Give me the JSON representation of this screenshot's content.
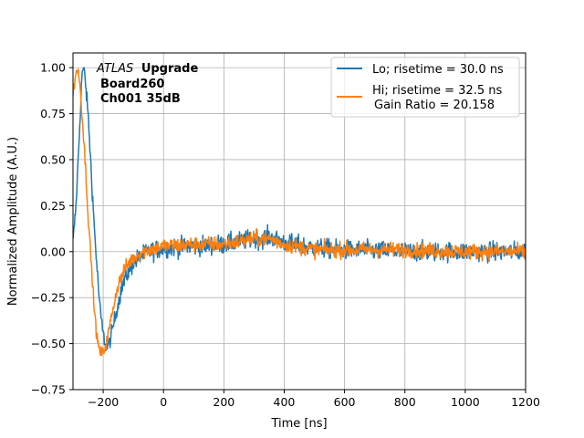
{
  "chart_data": {
    "type": "line",
    "title": "",
    "xlabel": "Time [ns]",
    "ylabel": "Normalized Amplitude (A.U.)",
    "xlim": [
      -300,
      1200
    ],
    "ylim": [
      -0.75,
      1.08
    ],
    "xticks": [
      -200,
      0,
      200,
      400,
      600,
      800,
      1000,
      1200
    ],
    "yticks": [
      -0.75,
      -0.5,
      -0.25,
      0.0,
      0.25,
      0.5,
      0.75,
      1.0
    ],
    "xtick_labels": [
      "−200",
      "0",
      "200",
      "400",
      "600",
      "800",
      "1000",
      "1200"
    ],
    "ytick_labels": [
      "−0.75",
      "−0.50",
      "−0.25",
      "0.00",
      "0.25",
      "0.50",
      "0.75",
      "1.00"
    ],
    "grid": true,
    "legend_position": "top-right",
    "annotation": {
      "italic": "ATLAS",
      "bold": "Upgrade",
      "line2": "Board260",
      "line3": "Ch001 35dB"
    },
    "series": [
      {
        "name": "Lo; risetime = 30.0 ns",
        "color": "#1f77b4",
        "noise": 0.05,
        "points": [
          [
            -300,
            0.05
          ],
          [
            -290,
            0.25
          ],
          [
            -280,
            0.6
          ],
          [
            -270,
            0.98
          ],
          [
            -262,
            0.98
          ],
          [
            -250,
            0.75
          ],
          [
            -240,
            0.45
          ],
          [
            -230,
            0.15
          ],
          [
            -220,
            -0.1
          ],
          [
            -210,
            -0.32
          ],
          [
            -200,
            -0.45
          ],
          [
            -190,
            -0.52
          ],
          [
            -180,
            -0.5
          ],
          [
            -170,
            -0.43
          ],
          [
            -160,
            -0.35
          ],
          [
            -150,
            -0.28
          ],
          [
            -140,
            -0.2
          ],
          [
            -120,
            -0.12
          ],
          [
            -100,
            -0.06
          ],
          [
            -80,
            -0.03
          ],
          [
            -50,
            0.0
          ],
          [
            0,
            0.02
          ],
          [
            100,
            0.03
          ],
          [
            200,
            0.04
          ],
          [
            300,
            0.07
          ],
          [
            350,
            0.08
          ],
          [
            400,
            0.05
          ],
          [
            500,
            0.02
          ],
          [
            600,
            0.01
          ],
          [
            800,
            0.0
          ],
          [
            1000,
            0.0
          ],
          [
            1200,
            0.0
          ]
        ]
      },
      {
        "name": "Hi; risetime = 32.5 ns",
        "color": "#ff7f0e",
        "noise": 0.04,
        "points": [
          [
            -300,
            0.85
          ],
          [
            -290,
            0.98
          ],
          [
            -280,
            0.97
          ],
          [
            -270,
            0.75
          ],
          [
            -260,
            0.5
          ],
          [
            -250,
            0.2
          ],
          [
            -240,
            -0.05
          ],
          [
            -230,
            -0.3
          ],
          [
            -220,
            -0.48
          ],
          [
            -210,
            -0.55
          ],
          [
            -200,
            -0.55
          ],
          [
            -190,
            -0.5
          ],
          [
            -180,
            -0.42
          ],
          [
            -170,
            -0.33
          ],
          [
            -160,
            -0.25
          ],
          [
            -150,
            -0.18
          ],
          [
            -130,
            -0.1
          ],
          [
            -110,
            -0.05
          ],
          [
            -80,
            -0.01
          ],
          [
            -50,
            0.01
          ],
          [
            0,
            0.03
          ],
          [
            100,
            0.04
          ],
          [
            200,
            0.04
          ],
          [
            300,
            0.07
          ],
          [
            350,
            0.07
          ],
          [
            400,
            0.04
          ],
          [
            500,
            0.01
          ],
          [
            600,
            0.01
          ],
          [
            800,
            0.01
          ],
          [
            1000,
            0.0
          ],
          [
            1200,
            0.0
          ]
        ]
      }
    ],
    "legend_extra": "Gain Ratio = 20.158"
  }
}
